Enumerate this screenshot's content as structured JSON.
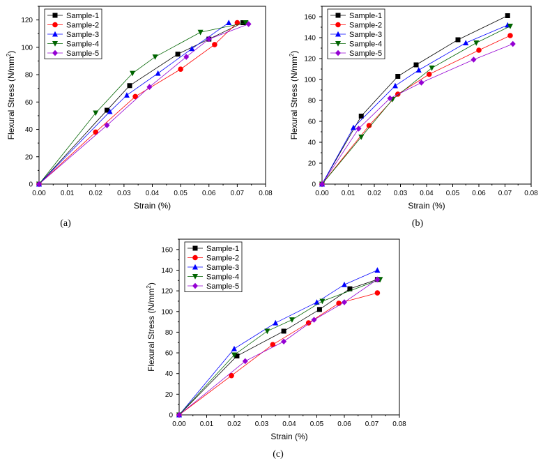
{
  "chart_data": [
    {
      "panel": "(a)",
      "type": "line",
      "xlabel": "Strain (%)",
      "ylabel": "Flexural  Stress (N/mm²)",
      "xlim": [
        0,
        0.08
      ],
      "ylim": [
        0,
        130
      ],
      "xticks": [
        "0.00",
        "0.01",
        "0.02",
        "0.03",
        "0.04",
        "0.05",
        "0.06",
        "0.07",
        "0.08"
      ],
      "yticks": [
        "0",
        "20",
        "40",
        "60",
        "80",
        "100",
        "120"
      ],
      "legend_placement": "top-left",
      "series": [
        {
          "name": "Sample-1",
          "color": "#000000",
          "marker": "square",
          "x": [
            0,
            0.024,
            0.032,
            0.049,
            0.06,
            0.072
          ],
          "y": [
            0,
            54,
            72,
            95,
            106,
            118
          ]
        },
        {
          "name": "Sample-2",
          "color": "#ff0000",
          "marker": "circle",
          "x": [
            0,
            0.02,
            0.034,
            0.05,
            0.062,
            0.07
          ],
          "y": [
            0,
            38,
            64,
            84,
            102,
            118
          ]
        },
        {
          "name": "Sample-3",
          "color": "#0000ff",
          "marker": "triangle-up",
          "x": [
            0,
            0.025,
            0.031,
            0.042,
            0.054,
            0.067
          ],
          "y": [
            0,
            53,
            65,
            81,
            99,
            118
          ]
        },
        {
          "name": "Sample-4",
          "color": "#006400",
          "marker": "triangle-down",
          "x": [
            0,
            0.02,
            0.033,
            0.041,
            0.057,
            0.073
          ],
          "y": [
            0,
            52,
            81,
            93,
            111,
            118
          ]
        },
        {
          "name": "Sample-5",
          "color": "#9400d3",
          "marker": "diamond",
          "x": [
            0,
            0.024,
            0.039,
            0.052,
            0.06,
            0.074
          ],
          "y": [
            0,
            43,
            71,
            93,
            106,
            117
          ]
        }
      ]
    },
    {
      "panel": "(b)",
      "type": "line",
      "xlabel": "Strain (%)",
      "ylabel": "Flexural  Stress (N/mm²)",
      "xlim": [
        0,
        0.08
      ],
      "ylim": [
        0,
        170
      ],
      "xticks": [
        "0.00",
        "0.01",
        "0.02",
        "0.03",
        "0.04",
        "0.05",
        "0.06",
        "0.07",
        "0.08"
      ],
      "yticks": [
        "0",
        "20",
        "40",
        "60",
        "80",
        "100",
        "120",
        "140",
        "160"
      ],
      "legend_placement": "top-left",
      "series": [
        {
          "name": "Sample-1",
          "color": "#000000",
          "marker": "square",
          "x": [
            0,
            0.015,
            0.029,
            0.036,
            0.052,
            0.071
          ],
          "y": [
            0,
            65,
            103,
            114,
            138,
            161
          ]
        },
        {
          "name": "Sample-2",
          "color": "#ff0000",
          "marker": "circle",
          "x": [
            0,
            0.018,
            0.029,
            0.041,
            0.06,
            0.072
          ],
          "y": [
            0,
            56,
            86,
            105,
            128,
            142
          ]
        },
        {
          "name": "Sample-3",
          "color": "#0000ff",
          "marker": "triangle-up",
          "x": [
            0,
            0.012,
            0.028,
            0.037,
            0.055,
            0.071
          ],
          "y": [
            0,
            54,
            94,
            109,
            135,
            152
          ]
        },
        {
          "name": "Sample-4",
          "color": "#006400",
          "marker": "triangle-down",
          "x": [
            0,
            0.015,
            0.027,
            0.042,
            0.059,
            0.072
          ],
          "y": [
            0,
            45,
            81,
            111,
            135,
            151
          ]
        },
        {
          "name": "Sample-5",
          "color": "#9400d3",
          "marker": "diamond",
          "x": [
            0,
            0.014,
            0.026,
            0.038,
            0.058,
            0.073
          ],
          "y": [
            0,
            53,
            82,
            97,
            119,
            134
          ]
        }
      ]
    },
    {
      "panel": "(c)",
      "type": "line",
      "xlabel": "Strain (%)",
      "ylabel": "Flexural  Stress (N/mm²)",
      "xlim": [
        0,
        0.08
      ],
      "ylim": [
        0,
        170
      ],
      "xticks": [
        "0.00",
        "0.01",
        "0.02",
        "0.03",
        "0.04",
        "0.05",
        "0.06",
        "0.07",
        "0.08"
      ],
      "yticks": [
        "0",
        "20",
        "40",
        "60",
        "80",
        "100",
        "120",
        "140",
        "160"
      ],
      "legend_placement": "top-left",
      "series": [
        {
          "name": "Sample-1",
          "color": "#000000",
          "marker": "square",
          "x": [
            0,
            0.021,
            0.038,
            0.051,
            0.062,
            0.072
          ],
          "y": [
            0,
            57,
            81,
            102,
            122,
            131
          ]
        },
        {
          "name": "Sample-2",
          "color": "#ff0000",
          "marker": "circle",
          "x": [
            0,
            0.019,
            0.034,
            0.047,
            0.058,
            0.072
          ],
          "y": [
            0,
            38,
            68,
            89,
            108,
            118
          ]
        },
        {
          "name": "Sample-3",
          "color": "#0000ff",
          "marker": "triangle-up",
          "x": [
            0,
            0.02,
            0.035,
            0.05,
            0.06,
            0.072
          ],
          "y": [
            0,
            64,
            89,
            109,
            126,
            140
          ]
        },
        {
          "name": "Sample-4",
          "color": "#006400",
          "marker": "triangle-down",
          "x": [
            0,
            0.02,
            0.032,
            0.041,
            0.052,
            0.073
          ],
          "y": [
            0,
            58,
            81,
            92,
            110,
            131
          ]
        },
        {
          "name": "Sample-5",
          "color": "#9400d3",
          "marker": "diamond",
          "x": [
            0,
            0.024,
            0.038,
            0.049,
            0.06,
            0.072
          ],
          "y": [
            0,
            52,
            71,
            92,
            109,
            131
          ]
        }
      ]
    }
  ]
}
